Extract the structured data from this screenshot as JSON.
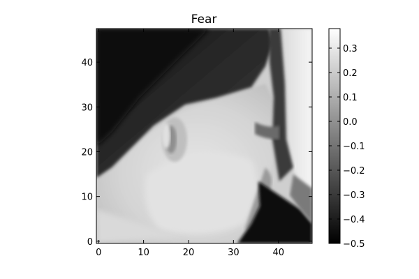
{
  "chart_data": {
    "type": "heatmap",
    "title": "Fear",
    "xlabel": "",
    "ylabel": "",
    "image_size": [
      48,
      48
    ],
    "xlim": [
      -0.5,
      47.5
    ],
    "ylim": [
      47.5,
      -0.5
    ],
    "x_ticks": [
      0,
      10,
      20,
      30,
      40
    ],
    "y_ticks": [
      0,
      10,
      20,
      30,
      40
    ],
    "x_tick_labels": [
      "0",
      "10",
      "20",
      "30",
      "40"
    ],
    "y_tick_labels": [
      "0",
      "10",
      "20",
      "30",
      "40"
    ],
    "colormap": "gray",
    "colorbar": {
      "vmin": -0.5,
      "vmax": 0.38,
      "ticks": [
        0.3,
        0.2,
        0.1,
        0.0,
        -0.1,
        -0.2,
        -0.3,
        -0.4,
        -0.5
      ],
      "tick_labels": [
        "0.3",
        "0.2",
        "0.1",
        "0.0",
        "−0.1",
        "−0.2",
        "−0.3",
        "−0.4",
        "−0.5"
      ]
    },
    "content_description": "grayscale face in profile facing right, dark hair at top-left, bright wall at right, dark region bottom-right"
  }
}
